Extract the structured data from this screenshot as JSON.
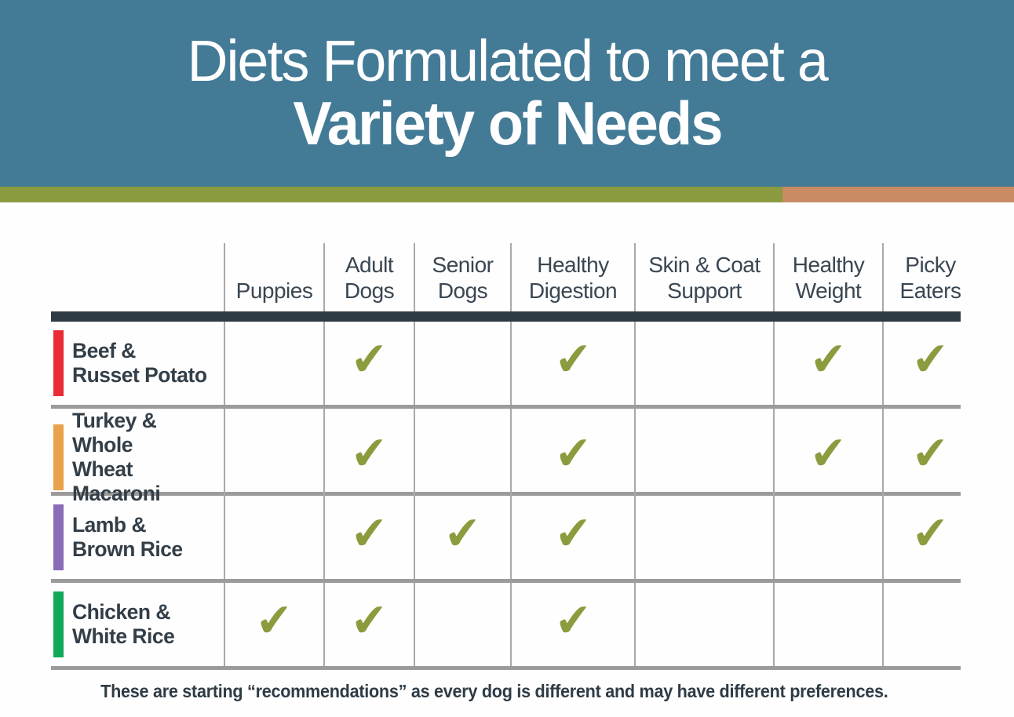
{
  "banner": {
    "title_line1": "Diets Formulated to meet a",
    "title_line2": "Variety of Needs",
    "bg_color": "#437a96",
    "stripe_green": "#8a9a3f",
    "stripe_tan": "#c98b63"
  },
  "table": {
    "columns": [
      [
        "Puppies"
      ],
      [
        "Adult",
        "Dogs"
      ],
      [
        "Senior",
        "Dogs"
      ],
      [
        "Healthy",
        "Digestion"
      ],
      [
        "Skin & Coat",
        "Support"
      ],
      [
        "Healthy",
        "Weight"
      ],
      [
        "Picky",
        "Eaters"
      ]
    ],
    "rows": [
      {
        "name": [
          "Beef &",
          "Russet Potato"
        ],
        "bar_color": "#e92c35",
        "checks": [
          false,
          true,
          false,
          true,
          false,
          true,
          true
        ]
      },
      {
        "name": [
          "Turkey & Whole",
          "Wheat Macaroni"
        ],
        "bar_color": "#e9a24c",
        "checks": [
          false,
          true,
          false,
          true,
          false,
          true,
          true
        ]
      },
      {
        "name": [
          "Lamb &",
          "Brown Rice"
        ],
        "bar_color": "#8a6cb8",
        "checks": [
          false,
          true,
          true,
          true,
          false,
          false,
          true
        ]
      },
      {
        "name": [
          "Chicken &",
          "White Rice"
        ],
        "bar_color": "#10a957",
        "checks": [
          true,
          true,
          false,
          true,
          false,
          false,
          false
        ]
      }
    ],
    "check_glyph": "✔",
    "check_color": "#8b9c3e"
  },
  "footer": {
    "note": "These are starting “recommendations” as every dog is different and may have different preferences."
  },
  "chart_data": {
    "type": "table",
    "title": "Diets Formulated to meet a Variety of Needs",
    "columns": [
      "Puppies",
      "Adult Dogs",
      "Senior Dogs",
      "Healthy Digestion",
      "Skin & Coat Support",
      "Healthy Weight",
      "Picky Eaters"
    ],
    "rows": [
      "Beef & Russet Potato",
      "Turkey & Whole Wheat Macaroni",
      "Lamb & Brown Rice",
      "Chicken & White Rice"
    ],
    "row_marker_colors": [
      "#e92c35",
      "#e9a24c",
      "#8a6cb8",
      "#10a957"
    ],
    "checks": [
      [
        false,
        true,
        false,
        true,
        false,
        true,
        true
      ],
      [
        false,
        true,
        false,
        true,
        false,
        true,
        true
      ],
      [
        false,
        true,
        true,
        true,
        false,
        false,
        true
      ],
      [
        true,
        true,
        false,
        true,
        false,
        false,
        false
      ]
    ],
    "note": "These are starting “recommendations” as every dog is different and may have different preferences.",
    "legend_position": "none",
    "grid": "on"
  }
}
